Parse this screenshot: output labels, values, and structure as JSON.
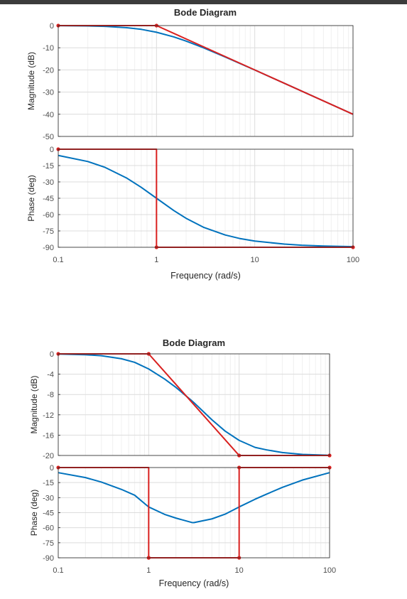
{
  "chart_data": [
    {
      "type": "line",
      "title": "Bode Diagram",
      "xlabel": "Frequency  (rad/s)",
      "xscale": "log",
      "xlim": [
        0.1,
        100
      ],
      "xticks": [
        0.1,
        1,
        10,
        100
      ],
      "xticklabels": [
        "0.1",
        "1",
        "10",
        "100"
      ],
      "grid": true,
      "panels": [
        {
          "ylabel": "Magnitude (dB)",
          "ylim": [
            -50,
            0
          ],
          "yticks": [
            0,
            -10,
            -20,
            -30,
            -40,
            -50
          ],
          "yticklabels": [
            "0",
            "-10",
            "-20",
            "-30",
            "-40",
            "-50"
          ],
          "series": [
            {
              "color": "#0072bd",
              "x": [
                0.1,
                0.2,
                0.3,
                0.5,
                0.7,
                1,
                1.5,
                2,
                3,
                5,
                7,
                10,
                20,
                30,
                50,
                100
              ],
              "y": [
                -0.04,
                -0.17,
                -0.37,
                -0.97,
                -1.7,
                -3.01,
                -5.12,
                -6.99,
                -10,
                -14.15,
                -17.03,
                -20.04,
                -26.03,
                -29.55,
                -33.98,
                -40
              ]
            },
            {
              "color": "#d9201f",
              "x": [
                0.1,
                1,
                100
              ],
              "y": [
                0,
                0,
                -40
              ],
              "markers": [
                0.1,
                1
              ]
            }
          ]
        },
        {
          "ylabel": "Phase (deg)",
          "ylim": [
            -90,
            0
          ],
          "yticks": [
            0,
            -15,
            -30,
            -45,
            -60,
            -75,
            -90
          ],
          "yticklabels": [
            "0",
            "-15",
            "-30",
            "-45",
            "-60",
            "-75",
            "-90"
          ],
          "series": [
            {
              "color": "#0072bd",
              "x": [
                0.1,
                0.2,
                0.3,
                0.5,
                0.7,
                1,
                1.5,
                2,
                3,
                5,
                7,
                10,
                20,
                30,
                50,
                100
              ],
              "y": [
                -5.7,
                -11.3,
                -16.7,
                -26.6,
                -35,
                -45,
                -56.3,
                -63.4,
                -71.6,
                -78.7,
                -81.9,
                -84.3,
                -87.1,
                -88.1,
                -88.9,
                -89.4
              ]
            },
            {
              "color": "#d9201f",
              "x": [
                0.1,
                1,
                1,
                100
              ],
              "y": [
                0,
                0,
                -90,
                -90
              ],
              "markers": [
                0.1,
                1,
                100
              ]
            }
          ]
        }
      ]
    },
    {
      "type": "line",
      "title": "Bode Diagram",
      "xlabel": "Frequency  (rad/s)",
      "xscale": "log",
      "xlim": [
        0.1,
        100
      ],
      "xticks": [
        0.1,
        1,
        10,
        100
      ],
      "xticklabels": [
        "0.1",
        "1",
        "10",
        "100"
      ],
      "grid": true,
      "panels": [
        {
          "ylabel": "Magnitude (dB)",
          "ylim": [
            -20,
            0
          ],
          "yticks": [
            0,
            -4,
            -8,
            -12,
            -16,
            -20
          ],
          "yticklabels": [
            "0",
            "-4",
            "-8",
            "-12",
            "-16",
            "-20"
          ],
          "series": [
            {
              "color": "#0072bd",
              "x": [
                0.1,
                0.2,
                0.3,
                0.5,
                0.7,
                1,
                1.5,
                2,
                3,
                3.16,
                5,
                7,
                10,
                15,
                20,
                30,
                50,
                100
              ],
              "y": [
                -0.04,
                -0.17,
                -0.37,
                -0.96,
                -1.67,
                -2.97,
                -4.96,
                -6.6,
                -9.24,
                -9.6,
                -12.97,
                -15.2,
                -17.03,
                -18.41,
                -18.89,
                -19.42,
                -19.79,
                -19.96
              ]
            },
            {
              "color": "#d9201f",
              "x": [
                0.1,
                1,
                10,
                100
              ],
              "y": [
                0,
                0,
                -20,
                -20
              ],
              "markers": [
                0.1,
                1,
                10,
                100
              ]
            }
          ]
        },
        {
          "ylabel": "Phase (deg)",
          "ylim": [
            -90,
            0
          ],
          "yticks": [
            0,
            -15,
            -30,
            -45,
            -60,
            -75,
            -90
          ],
          "yticklabels": [
            "0",
            "-15",
            "-30",
            "-45",
            "-60",
            "-75",
            "-90"
          ],
          "series": [
            {
              "color": "#0072bd",
              "x": [
                0.1,
                0.2,
                0.3,
                0.5,
                0.7,
                1,
                1.5,
                2,
                3,
                3.16,
                5,
                7,
                10,
                15,
                20,
                30,
                50,
                100
              ],
              "y": [
                -5.1,
                -10,
                -14.5,
                -21.8,
                -27.6,
                -39.3,
                -46.7,
                -50.4,
                -54.8,
                -54.9,
                -51.2,
                -46.5,
                -39.3,
                -31.6,
                -26.6,
                -19.8,
                -12.5,
                -5.1
              ]
            },
            {
              "color": "#d9201f",
              "x": [
                0.1,
                1,
                1,
                10,
                10,
                100
              ],
              "y": [
                0,
                0,
                -90,
                -90,
                0,
                0
              ],
              "markers": [
                0.1,
                1,
                10,
                100
              ]
            },
            {
              "color": "#d9201f",
              "x": [
                1,
                10
              ],
              "y": [
                -90,
                -90
              ],
              "markers": [
                1,
                10
              ]
            }
          ]
        }
      ]
    }
  ]
}
